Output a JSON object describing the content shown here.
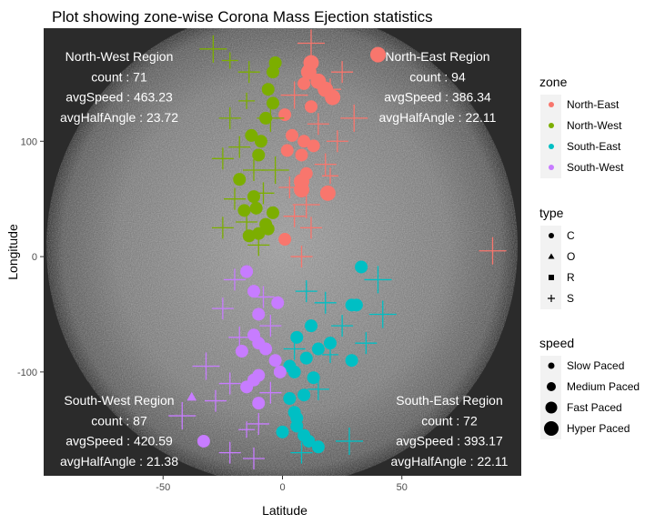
{
  "chart_data": {
    "type": "scatter",
    "title": "Plot showing zone-wise Corona Mass Ejection statistics",
    "xlabel": "Latitude",
    "ylabel": "Longitude",
    "xlim": [
      -100,
      100
    ],
    "ylim": [
      -190,
      198
    ],
    "x_ticks": [
      -50,
      0,
      50
    ],
    "y_ticks": [
      -100,
      0,
      100
    ],
    "grid": false,
    "background": "sun image",
    "zone_colors": {
      "North-East": "#F8766D",
      "North-West": "#7CAE00",
      "South-East": "#00BFC4",
      "South-West": "#C77CFF"
    },
    "annotations": [
      {
        "zone": "North-West",
        "lines": [
          "North-West Region",
          "count : 71",
          "avgSpeed : 463.23",
          "avgHalfAngle : 23.72"
        ]
      },
      {
        "zone": "North-East",
        "lines": [
          "North-East Region",
          "count : 94",
          "avgSpeed : 386.34",
          "avgHalfAngle : 22.11"
        ]
      },
      {
        "zone": "South-West",
        "lines": [
          "South-West Region",
          "count : 87",
          "avgSpeed : 420.59",
          "avgHalfAngle : 21.38"
        ]
      },
      {
        "zone": "South-East",
        "lines": [
          "South-East Region",
          "count : 72",
          "avgSpeed : 393.17",
          "avgHalfAngle : 22.11"
        ]
      }
    ],
    "legends": [
      {
        "title": "zone",
        "kind": "color",
        "items": [
          "North-East",
          "North-West",
          "South-East",
          "South-West"
        ]
      },
      {
        "title": "type",
        "kind": "shape",
        "items": [
          "C",
          "O",
          "R",
          "S"
        ]
      },
      {
        "title": "speed",
        "kind": "size",
        "items": [
          "Slow Paced",
          "Medium Paced",
          "Fast Paced",
          "Hyper Paced"
        ]
      }
    ],
    "series": [
      {
        "zone": "North-East",
        "points": [
          [
            40,
            175,
            "C",
            "Hyper Paced"
          ],
          [
            12,
            168,
            "C",
            "Hyper Paced"
          ],
          [
            11,
            160,
            "C",
            "Hyper Paced"
          ],
          [
            15,
            152,
            "C",
            "Hyper Paced"
          ],
          [
            18,
            145,
            "C",
            "Hyper Paced"
          ],
          [
            21,
            138,
            "C",
            "Hyper Paced"
          ],
          [
            9,
            150,
            "C",
            "Fast Paced"
          ],
          [
            1,
            123,
            "C",
            "Fast Paced"
          ],
          [
            12,
            130,
            "C",
            "Fast Paced"
          ],
          [
            4,
            105,
            "C",
            "Fast Paced"
          ],
          [
            9,
            100,
            "C",
            "Fast Paced"
          ],
          [
            13,
            96,
            "C",
            "Fast Paced"
          ],
          [
            2,
            92,
            "C",
            "Fast Paced"
          ],
          [
            8,
            88,
            "C",
            "Fast Paced"
          ],
          [
            10,
            72,
            "C",
            "Fast Paced"
          ],
          [
            8,
            65,
            "C",
            "Hyper Paced"
          ],
          [
            8,
            58,
            "C",
            "Hyper Paced"
          ],
          [
            19,
            55,
            "C",
            "Hyper Paced"
          ],
          [
            1,
            15,
            "C",
            "Fast Paced"
          ],
          [
            12,
            185,
            "S",
            "Hyper Paced"
          ],
          [
            30,
            120,
            "S",
            "Hyper Paced"
          ],
          [
            20,
            145,
            "S",
            "Fast Paced"
          ],
          [
            25,
            160,
            "S",
            "Fast Paced"
          ],
          [
            5,
            140,
            "S",
            "Hyper Paced"
          ],
          [
            15,
            115,
            "S",
            "Fast Paced"
          ],
          [
            23,
            100,
            "S",
            "Fast Paced"
          ],
          [
            18,
            80,
            "S",
            "Fast Paced"
          ],
          [
            10,
            45,
            "S",
            "Hyper Paced"
          ],
          [
            5,
            35,
            "S",
            "Fast Paced"
          ],
          [
            12,
            25,
            "S",
            "Fast Paced"
          ],
          [
            8,
            0,
            "S",
            "Fast Paced"
          ],
          [
            88,
            5,
            "S",
            "Hyper Paced"
          ],
          [
            20,
            70,
            "S",
            "Medium Paced"
          ],
          [
            3,
            60,
            "S",
            "Fast Paced"
          ]
        ]
      },
      {
        "zone": "North-West",
        "points": [
          [
            -3,
            168,
            "C",
            "Fast Paced"
          ],
          [
            -4,
            160,
            "C",
            "Fast Paced"
          ],
          [
            -6,
            145,
            "C",
            "Fast Paced"
          ],
          [
            -4,
            133,
            "C",
            "Fast Paced"
          ],
          [
            -7,
            120,
            "C",
            "Fast Paced"
          ],
          [
            -9,
            100,
            "C",
            "Fast Paced"
          ],
          [
            -13,
            105,
            "C",
            "Fast Paced"
          ],
          [
            -10,
            88,
            "C",
            "Fast Paced"
          ],
          [
            -18,
            67,
            "C",
            "Fast Paced"
          ],
          [
            -12,
            52,
            "C",
            "Fast Paced"
          ],
          [
            -11,
            42,
            "C",
            "Fast Paced"
          ],
          [
            -16,
            40,
            "C",
            "Fast Paced"
          ],
          [
            -4,
            38,
            "C",
            "Fast Paced"
          ],
          [
            -7,
            28,
            "C",
            "Fast Paced"
          ],
          [
            -10,
            20,
            "C",
            "Fast Paced"
          ],
          [
            -6,
            24,
            "C",
            "Fast Paced"
          ],
          [
            -14,
            18,
            "C",
            "Fast Paced"
          ],
          [
            -29,
            180,
            "S",
            "Hyper Paced"
          ],
          [
            -14,
            160,
            "S",
            "Fast Paced"
          ],
          [
            -22,
            120,
            "S",
            "Fast Paced"
          ],
          [
            -5,
            120,
            "S",
            "Hyper Paced"
          ],
          [
            -18,
            95,
            "S",
            "Fast Paced"
          ],
          [
            -25,
            85,
            "S",
            "Fast Paced"
          ],
          [
            -12,
            75,
            "S",
            "Fast Paced"
          ],
          [
            -3,
            75,
            "S",
            "Hyper Paced"
          ],
          [
            -20,
            50,
            "S",
            "Fast Paced"
          ],
          [
            -8,
            55,
            "S",
            "Fast Paced"
          ],
          [
            -15,
            30,
            "S",
            "Fast Paced"
          ],
          [
            -25,
            25,
            "S",
            "Fast Paced"
          ],
          [
            -10,
            10,
            "S",
            "Fast Paced"
          ],
          [
            -15,
            135,
            "S",
            "Medium Paced"
          ],
          [
            -22,
            170,
            "S",
            "Medium Paced"
          ]
        ]
      },
      {
        "zone": "South-East",
        "points": [
          [
            33,
            -9,
            "C",
            "Fast Paced"
          ],
          [
            29,
            -42,
            "C",
            "Fast Paced"
          ],
          [
            31,
            -42,
            "C",
            "Fast Paced"
          ],
          [
            12,
            -60,
            "C",
            "Fast Paced"
          ],
          [
            6,
            -70,
            "C",
            "Fast Paced"
          ],
          [
            20,
            -75,
            "C",
            "Fast Paced"
          ],
          [
            15,
            -80,
            "C",
            "Fast Paced"
          ],
          [
            10,
            -88,
            "C",
            "Fast Paced"
          ],
          [
            29,
            -90,
            "C",
            "Fast Paced"
          ],
          [
            3,
            -95,
            "C",
            "Fast Paced"
          ],
          [
            5,
            -100,
            "C",
            "Fast Paced"
          ],
          [
            13,
            -105,
            "C",
            "Fast Paced"
          ],
          [
            9,
            -120,
            "C",
            "Fast Paced"
          ],
          [
            3,
            -123,
            "C",
            "Fast Paced"
          ],
          [
            5,
            -135,
            "C",
            "Fast Paced"
          ],
          [
            6,
            -140,
            "C",
            "Fast Paced"
          ],
          [
            0,
            -152,
            "C",
            "Fast Paced"
          ],
          [
            6,
            -147,
            "C",
            "Fast Paced"
          ],
          [
            9,
            -155,
            "C",
            "Fast Paced"
          ],
          [
            11,
            -160,
            "C",
            "Fast Paced"
          ],
          [
            15,
            -165,
            "C",
            "Fast Paced"
          ],
          [
            40,
            -20,
            "S",
            "Hyper Paced"
          ],
          [
            10,
            -30,
            "S",
            "Fast Paced"
          ],
          [
            18,
            -40,
            "S",
            "Fast Paced"
          ],
          [
            42,
            -50,
            "S",
            "Hyper Paced"
          ],
          [
            25,
            -60,
            "S",
            "Fast Paced"
          ],
          [
            35,
            -75,
            "S",
            "Fast Paced"
          ],
          [
            5,
            -80,
            "S",
            "Fast Paced"
          ],
          [
            15,
            -115,
            "S",
            "Fast Paced"
          ],
          [
            28,
            -160,
            "S",
            "Hyper Paced"
          ],
          [
            8,
            -170,
            "S",
            "Fast Paced"
          ],
          [
            20,
            -85,
            "S",
            "Medium Paced"
          ]
        ]
      },
      {
        "zone": "South-West",
        "points": [
          [
            -15,
            -13,
            "C",
            "Fast Paced"
          ],
          [
            -12,
            -30,
            "C",
            "Fast Paced"
          ],
          [
            -2,
            -40,
            "C",
            "Fast Paced"
          ],
          [
            -10,
            -50,
            "C",
            "Fast Paced"
          ],
          [
            -12,
            -68,
            "C",
            "Fast Paced"
          ],
          [
            -10,
            -75,
            "C",
            "Fast Paced"
          ],
          [
            -17,
            -82,
            "C",
            "Fast Paced"
          ],
          [
            -7,
            -80,
            "C",
            "Fast Paced"
          ],
          [
            -3,
            -90,
            "C",
            "Fast Paced"
          ],
          [
            -1,
            -100,
            "C",
            "Fast Paced"
          ],
          [
            -10,
            -103,
            "C",
            "Fast Paced"
          ],
          [
            -12,
            -107,
            "C",
            "Fast Paced"
          ],
          [
            -15,
            -113,
            "C",
            "Fast Paced"
          ],
          [
            -10,
            -127,
            "C",
            "Fast Paced"
          ],
          [
            -33,
            -160,
            "C",
            "Fast Paced"
          ],
          [
            -38,
            -122,
            "O",
            "Medium Paced"
          ],
          [
            -20,
            -20,
            "S",
            "Fast Paced"
          ],
          [
            -25,
            -45,
            "S",
            "Fast Paced"
          ],
          [
            -8,
            -35,
            "S",
            "Fast Paced"
          ],
          [
            -18,
            -70,
            "S",
            "Fast Paced"
          ],
          [
            -32,
            -95,
            "S",
            "Hyper Paced"
          ],
          [
            -5,
            -60,
            "S",
            "Fast Paced"
          ],
          [
            -22,
            -110,
            "S",
            "Fast Paced"
          ],
          [
            -42,
            -138,
            "S",
            "Hyper Paced"
          ],
          [
            -10,
            -145,
            "S",
            "Fast Paced"
          ],
          [
            -22,
            -170,
            "S",
            "Fast Paced"
          ],
          [
            -12,
            -175,
            "S",
            "Fast Paced"
          ],
          [
            -28,
            -125,
            "S",
            "Fast Paced"
          ],
          [
            -15,
            -150,
            "S",
            "Medium Paced"
          ],
          [
            -5,
            -118,
            "S",
            "Fast Paced"
          ]
        ]
      }
    ]
  }
}
